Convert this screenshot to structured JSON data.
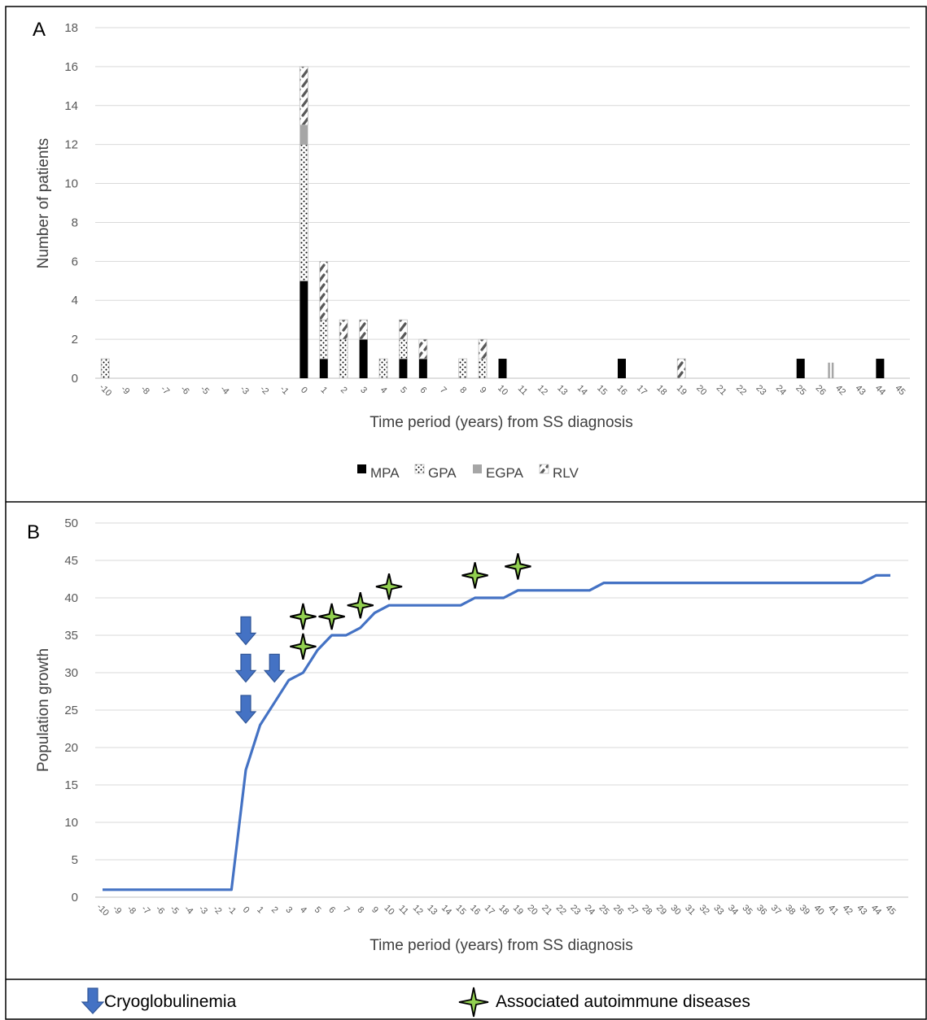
{
  "colors": {
    "mpa": "#000000",
    "egpa": "#a6a6a6",
    "line": "#4472c4",
    "arrow": "#4472c4",
    "arrow_outline": "#2f5597",
    "grid": "#d9d9d9",
    "star_fill": "#92d050"
  },
  "chart_data": [
    {
      "id": "A",
      "type": "bar",
      "stacked": true,
      "panel_label": "A",
      "xlabel": "Time period (years) from SS diagnosis",
      "ylabel": "Number of patients",
      "ylim": [
        0,
        18
      ],
      "yticks": [
        0,
        2,
        4,
        6,
        8,
        10,
        12,
        14,
        16,
        18
      ],
      "grid": true,
      "legend_position": "bottom",
      "categories": [
        "-10",
        "-9",
        "-8",
        "-7",
        "-6",
        "-5",
        "-4",
        "-3",
        "-2",
        "-1",
        "0",
        "1",
        "2",
        "3",
        "4",
        "5",
        "6",
        "7",
        "8",
        "9",
        "10",
        "11",
        "12",
        "13",
        "14",
        "15",
        "16",
        "17",
        "18",
        "19",
        "20",
        "21",
        "22",
        "23",
        "24",
        "25",
        "26",
        "42",
        "43",
        "44",
        "45"
      ],
      "axis_break_between": [
        "26",
        "42"
      ],
      "series": [
        {
          "name": "MPA",
          "pattern": "solid-black",
          "values": [
            0,
            0,
            0,
            0,
            0,
            0,
            0,
            0,
            0,
            0,
            5,
            1,
            0,
            2,
            0,
            1,
            1,
            0,
            0,
            0,
            1,
            0,
            0,
            0,
            0,
            0,
            1,
            0,
            0,
            0,
            0,
            0,
            0,
            0,
            0,
            1,
            0,
            0,
            0,
            1,
            0
          ]
        },
        {
          "name": "GPA",
          "pattern": "dots",
          "values": [
            1,
            0,
            0,
            0,
            0,
            0,
            0,
            0,
            0,
            0,
            7,
            2,
            2,
            0,
            1,
            1,
            0,
            0,
            1,
            1,
            0,
            0,
            0,
            0,
            0,
            0,
            0,
            0,
            0,
            0,
            0,
            0,
            0,
            0,
            0,
            0,
            0,
            0,
            0,
            0,
            0
          ]
        },
        {
          "name": "EGPA",
          "pattern": "solid-grey",
          "values": [
            0,
            0,
            0,
            0,
            0,
            0,
            0,
            0,
            0,
            0,
            1,
            0,
            0,
            0,
            0,
            0,
            0,
            0,
            0,
            0,
            0,
            0,
            0,
            0,
            0,
            0,
            0,
            0,
            0,
            0,
            0,
            0,
            0,
            0,
            0,
            0,
            0,
            0,
            0,
            0,
            0
          ]
        },
        {
          "name": "RLV",
          "pattern": "hatch",
          "values": [
            0,
            0,
            0,
            0,
            0,
            0,
            0,
            0,
            0,
            0,
            3,
            3,
            1,
            1,
            0,
            1,
            1,
            0,
            0,
            1,
            0,
            0,
            0,
            0,
            0,
            0,
            0,
            0,
            0,
            1,
            0,
            0,
            0,
            0,
            0,
            0,
            0,
            0,
            0,
            0,
            0
          ]
        }
      ]
    },
    {
      "id": "B",
      "type": "line",
      "panel_label": "B",
      "xlabel": "Time period (years) from SS diagnosis",
      "ylabel": "Population growth",
      "ylim": [
        0,
        50
      ],
      "yticks": [
        0,
        5,
        10,
        15,
        20,
        25,
        30,
        35,
        40,
        45,
        50
      ],
      "grid": true,
      "x": [
        "-10",
        "-9",
        "-8",
        "-7",
        "-6",
        "-5",
        "-4",
        "-3",
        "-2",
        "-1",
        "0",
        "1",
        "2",
        "3",
        "4",
        "5",
        "6",
        "7",
        "8",
        "9",
        "10",
        "11",
        "12",
        "13",
        "14",
        "15",
        "16",
        "17",
        "18",
        "19",
        "20",
        "21",
        "22",
        "23",
        "24",
        "25",
        "26",
        "27",
        "28",
        "29",
        "30",
        "31",
        "32",
        "33",
        "34",
        "35",
        "36",
        "37",
        "38",
        "39",
        "40",
        "41",
        "42",
        "43",
        "44",
        "45"
      ],
      "series": [
        {
          "values": [
            1,
            1,
            1,
            1,
            1,
            1,
            1,
            1,
            1,
            1,
            17,
            23,
            26,
            29,
            30,
            33,
            35,
            35,
            36,
            38,
            39,
            39,
            39,
            39,
            39,
            39,
            40,
            40,
            40,
            41,
            41,
            41,
            41,
            41,
            41,
            42,
            42,
            42,
            42,
            42,
            42,
            42,
            42,
            42,
            42,
            42,
            42,
            42,
            42,
            42,
            42,
            42,
            42,
            42,
            43,
            43
          ]
        }
      ],
      "markers": {
        "cryoglobulinemia_arrows": [
          {
            "x": "0",
            "y": 35.5
          },
          {
            "x": "0",
            "y": 30.5
          },
          {
            "x": "0",
            "y": 25
          },
          {
            "x": "2",
            "y": 30.5
          }
        ],
        "autoimmune_stars": [
          {
            "x": "4",
            "y": 37.5
          },
          {
            "x": "4",
            "y": 33.5
          },
          {
            "x": "6",
            "y": 37.5
          },
          {
            "x": "8",
            "y": 39
          },
          {
            "x": "10",
            "y": 41.5
          },
          {
            "x": "16",
            "y": 43
          },
          {
            "x": "19",
            "y": 44.2
          }
        ]
      }
    }
  ],
  "key": {
    "cryo_label": "Cryoglobulinemia",
    "autoimmune_label": "Associated autoimmune diseases"
  }
}
